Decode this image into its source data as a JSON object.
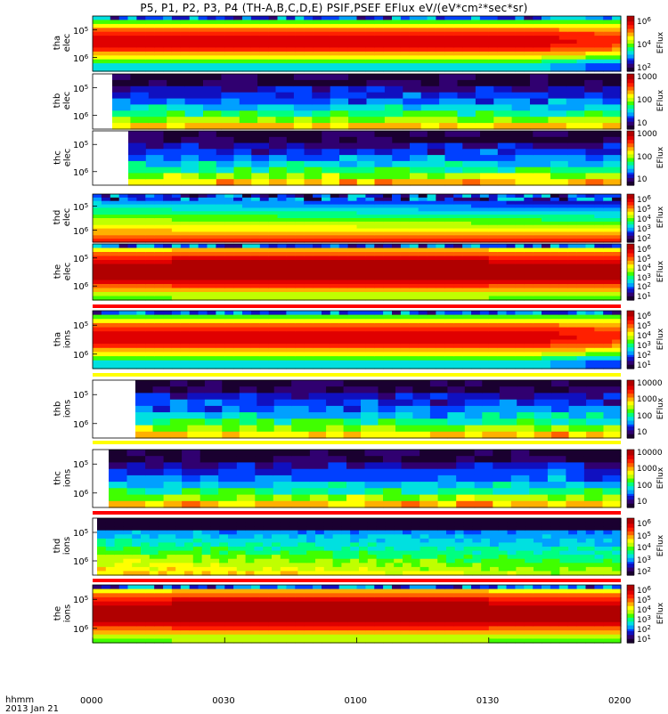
{
  "title": "P5, P1, P2, P3, P4 (TH-A,B,C,D,E) PSIF,PSEF EFlux eV/(eV*cm²*sec*sr)",
  "x_axis": {
    "corner_label_1": "hhmm",
    "corner_label_2": "2013 Jan 21",
    "ticks": [
      "0000",
      "0030",
      "0100",
      "0130",
      "0200"
    ]
  },
  "colorbar_unit": "EFlux",
  "colors": {
    "spectrum": [
      "#1a0030",
      "#300070",
      "#1010c0",
      "#0040ff",
      "#00a0ff",
      "#00e0e0",
      "#00ff80",
      "#40ff00",
      "#c0ff00",
      "#ffff00",
      "#ffb000",
      "#ff6000",
      "#ff2000",
      "#e00000",
      "#b00000"
    ],
    "red_bar": "#ff0000",
    "yellow_bar": "#ffff00"
  },
  "chart_data": {
    "type": "heatmap",
    "x_label": "hhmm",
    "x_range": [
      "0000",
      "0200"
    ],
    "panels": [
      {
        "probe": "tha",
        "species": "elec",
        "y_ticks": [
          "5",
          "6"
        ],
        "colorbar": [
          "6",
          "4",
          "2"
        ]
      },
      {
        "probe": "thb",
        "species": "elec",
        "y_ticks": [
          "5",
          "6"
        ],
        "colorbar": [
          "1000",
          "100",
          "10"
        ]
      },
      {
        "probe": "thc",
        "species": "elec",
        "y_ticks": [
          "5",
          "6"
        ],
        "colorbar": [
          "1000",
          "100",
          "10"
        ]
      },
      {
        "probe": "thd",
        "species": "elec",
        "y_ticks": [
          "5",
          "6"
        ],
        "colorbar": [
          "6",
          "5",
          "4",
          "3",
          "2"
        ]
      },
      {
        "probe": "the",
        "species": "elec",
        "y_ticks": [
          "5",
          "6"
        ],
        "colorbar": [
          "6",
          "5",
          "4",
          "3",
          "2",
          "1"
        ]
      },
      {
        "probe": "tha",
        "species": "ions",
        "y_ticks": [
          "5",
          "6"
        ],
        "colorbar": [
          "6",
          "5",
          "4",
          "3",
          "2",
          "1"
        ]
      },
      {
        "probe": "thb",
        "species": "ions",
        "y_ticks": [
          "5",
          "6"
        ],
        "colorbar": [
          "10000",
          "1000",
          "100",
          "10"
        ]
      },
      {
        "probe": "thc",
        "species": "ions",
        "y_ticks": [
          "5",
          "6"
        ],
        "colorbar": [
          "10000",
          "1000",
          "100",
          "10"
        ]
      },
      {
        "probe": "thd",
        "species": "ions",
        "y_ticks": [
          "5",
          "6"
        ],
        "colorbar": [
          "6",
          "5",
          "4",
          "3",
          "2"
        ]
      },
      {
        "probe": "the",
        "species": "ions",
        "y_ticks": [
          "5",
          "6"
        ],
        "colorbar": [
          "6",
          "5",
          "4",
          "3",
          "2",
          "1"
        ]
      }
    ]
  }
}
